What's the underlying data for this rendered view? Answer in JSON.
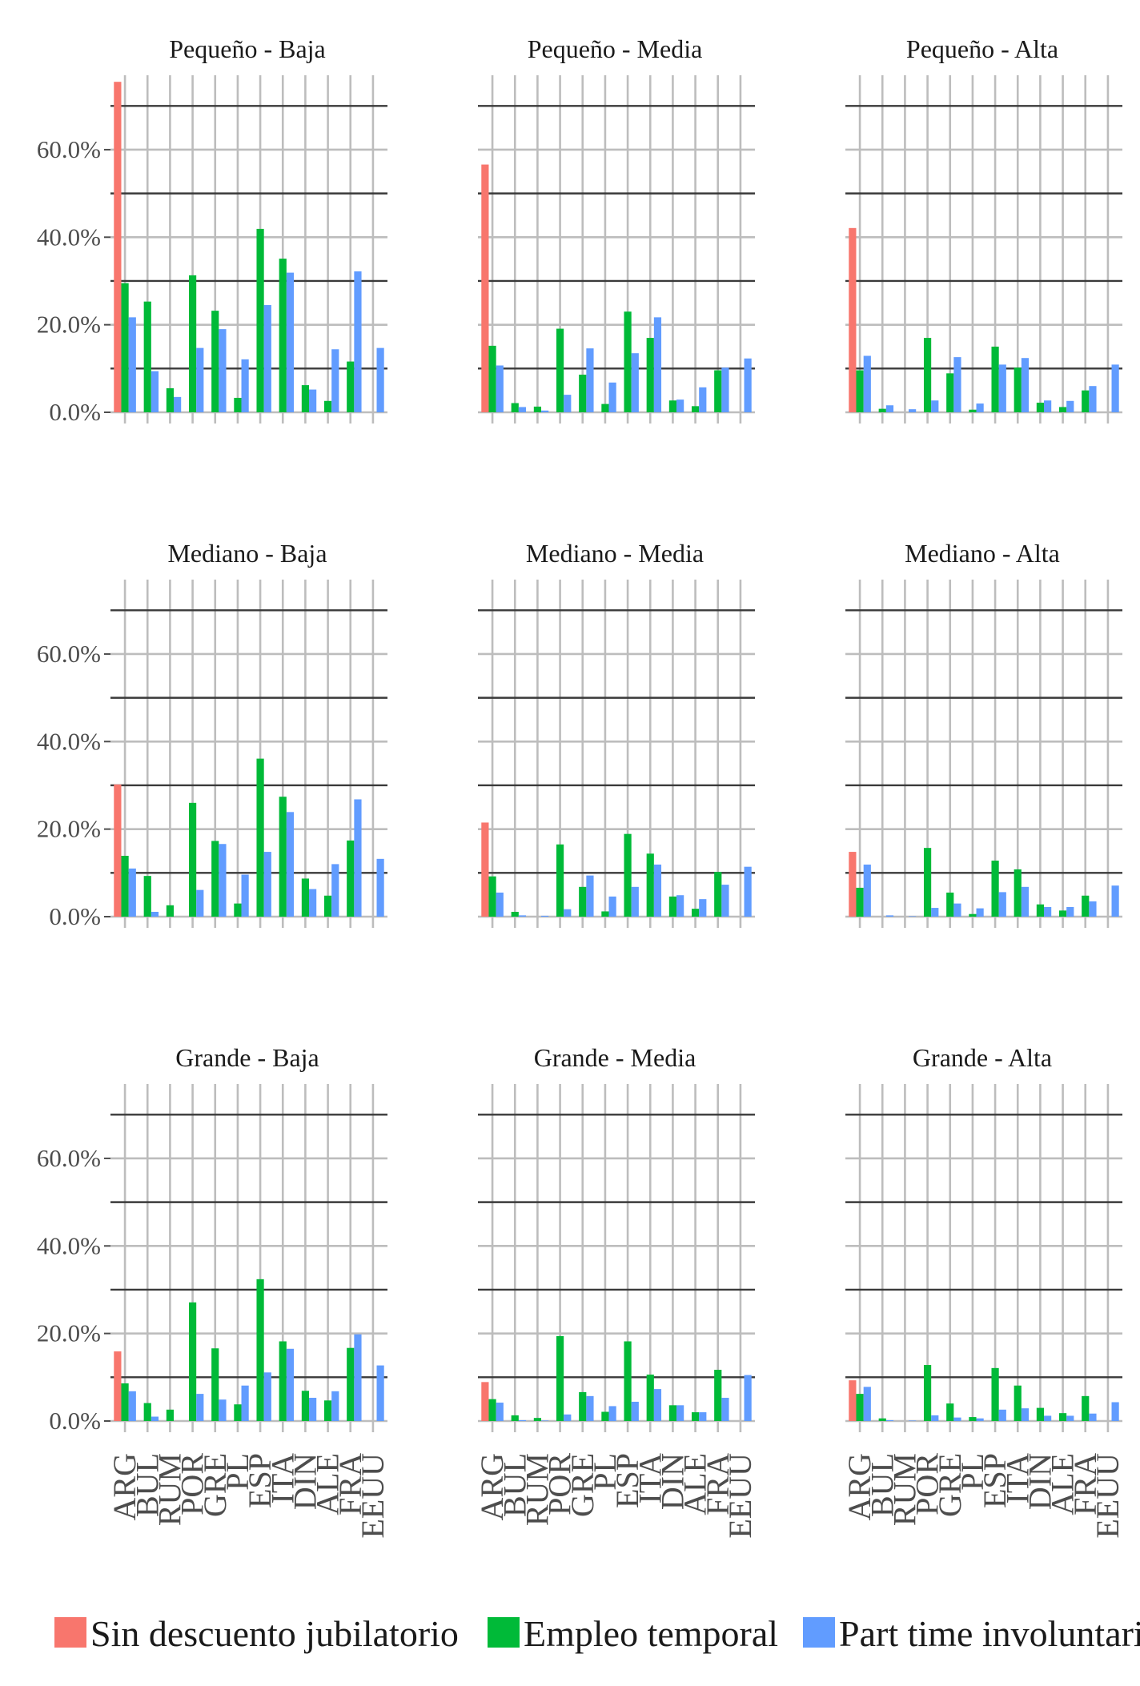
{
  "chart_data": {
    "type": "bar",
    "layout": "facet-grid",
    "y_tick_labels": [
      "0.0%",
      "20.0%",
      "40.0%",
      "60.0%"
    ],
    "y_ticks": [
      0,
      20,
      40,
      60
    ],
    "ylim": [
      0,
      77
    ],
    "y_unit": "%",
    "grid": true,
    "legend_position": "bottom",
    "categories": [
      "ARG",
      "BUL",
      "RUM",
      "POR",
      "GRE",
      "PL",
      "ESP",
      "ITA",
      "DIN",
      "ALE",
      "FRA",
      "EEUU"
    ],
    "series_names": [
      "Sin descuento jubilatorio",
      "Empleo temporal",
      "Part time involuntario"
    ],
    "series_colors": [
      "#F8766D",
      "#00BA38",
      "#619CFF"
    ],
    "panels": [
      {
        "title": "Pequeño - Baja",
        "series": [
          {
            "name": "Sin descuento jubilatorio",
            "values": [
              75.5,
              null,
              null,
              null,
              null,
              null,
              null,
              null,
              null,
              null,
              null,
              null
            ]
          },
          {
            "name": "Empleo temporal",
            "values": [
              29.5,
              25.3,
              5.5,
              31.3,
              23.2,
              3.3,
              41.9,
              35.1,
              6.2,
              2.6,
              11.6,
              null
            ]
          },
          {
            "name": "Part time involuntario",
            "values": [
              21.7,
              9.4,
              3.5,
              14.7,
              19.0,
              12.1,
              24.5,
              31.9,
              5.2,
              14.4,
              32.2,
              14.7
            ]
          }
        ]
      },
      {
        "title": "Pequeño - Media",
        "series": [
          {
            "name": "Sin descuento jubilatorio",
            "values": [
              56.6,
              null,
              null,
              null,
              null,
              null,
              null,
              null,
              null,
              null,
              null,
              null
            ]
          },
          {
            "name": "Empleo temporal",
            "values": [
              15.2,
              2.1,
              1.3,
              19.1,
              8.6,
              1.9,
              23.0,
              17.0,
              2.7,
              1.4,
              9.6,
              null
            ]
          },
          {
            "name": "Part time involuntario",
            "values": [
              10.7,
              1.2,
              0.4,
              4.0,
              14.6,
              6.8,
              13.5,
              21.7,
              2.9,
              5.7,
              10.2,
              12.3
            ]
          }
        ]
      },
      {
        "title": "Pequeño - Alta",
        "series": [
          {
            "name": "Sin descuento jubilatorio",
            "values": [
              42.1,
              null,
              null,
              null,
              null,
              null,
              null,
              null,
              null,
              null,
              null,
              null
            ]
          },
          {
            "name": "Empleo temporal",
            "values": [
              9.6,
              0.8,
              null,
              17.0,
              8.9,
              0.6,
              15.0,
              10.2,
              2.2,
              1.2,
              5.0,
              null
            ]
          },
          {
            "name": "Part time involuntario",
            "values": [
              12.9,
              1.6,
              0.7,
              2.7,
              12.6,
              2.0,
              10.9,
              12.4,
              2.7,
              2.6,
              6.0,
              10.9
            ]
          }
        ]
      },
      {
        "title": "Mediano - Baja",
        "series": [
          {
            "name": "Sin descuento jubilatorio",
            "values": [
              30.2,
              null,
              null,
              null,
              null,
              null,
              null,
              null,
              null,
              null,
              null,
              null
            ]
          },
          {
            "name": "Empleo temporal",
            "values": [
              13.9,
              9.3,
              2.6,
              26.0,
              17.3,
              3.0,
              36.1,
              27.4,
              8.7,
              4.8,
              17.4,
              null
            ]
          },
          {
            "name": "Part time involuntario",
            "values": [
              11.0,
              1.1,
              null,
              6.1,
              16.6,
              9.6,
              14.8,
              23.9,
              6.3,
              12.0,
              26.8,
              13.2
            ]
          }
        ]
      },
      {
        "title": "Mediano - Media",
        "series": [
          {
            "name": "Sin descuento jubilatorio",
            "values": [
              21.5,
              null,
              null,
              null,
              null,
              null,
              null,
              null,
              null,
              null,
              null,
              null
            ]
          },
          {
            "name": "Empleo temporal",
            "values": [
              9.2,
              1.1,
              null,
              16.5,
              6.8,
              1.2,
              18.9,
              14.4,
              4.6,
              1.8,
              10.2,
              null
            ]
          },
          {
            "name": "Part time involuntario",
            "values": [
              5.5,
              0.3,
              0.2,
              1.7,
              9.4,
              4.6,
              6.8,
              11.9,
              4.9,
              4.0,
              7.3,
              11.4
            ]
          }
        ]
      },
      {
        "title": "Mediano - Alta",
        "series": [
          {
            "name": "Sin descuento jubilatorio",
            "values": [
              14.8,
              null,
              null,
              null,
              null,
              null,
              null,
              null,
              null,
              null,
              null,
              null
            ]
          },
          {
            "name": "Empleo temporal",
            "values": [
              6.6,
              null,
              null,
              15.7,
              5.5,
              0.6,
              12.8,
              10.8,
              2.8,
              1.4,
              4.8,
              null
            ]
          },
          {
            "name": "Part time involuntario",
            "values": [
              11.9,
              0.3,
              0.1,
              2.0,
              3.0,
              1.9,
              5.6,
              6.8,
              2.2,
              2.2,
              3.5,
              7.1
            ]
          }
        ]
      },
      {
        "title": "Grande - Baja",
        "series": [
          {
            "name": "Sin descuento jubilatorio",
            "values": [
              15.9,
              null,
              null,
              null,
              null,
              null,
              null,
              null,
              null,
              null,
              null,
              null
            ]
          },
          {
            "name": "Empleo temporal",
            "values": [
              8.6,
              4.1,
              2.6,
              27.1,
              16.6,
              3.8,
              32.4,
              18.2,
              6.9,
              4.7,
              16.7,
              null
            ]
          },
          {
            "name": "Part time involuntario",
            "values": [
              6.8,
              1.0,
              null,
              6.2,
              4.9,
              8.1,
              11.1,
              16.5,
              5.3,
              6.8,
              19.8,
              12.7
            ]
          }
        ]
      },
      {
        "title": "Grande - Media",
        "series": [
          {
            "name": "Sin descuento jubilatorio",
            "values": [
              8.9,
              null,
              null,
              null,
              null,
              null,
              null,
              null,
              null,
              null,
              null,
              null
            ]
          },
          {
            "name": "Empleo temporal",
            "values": [
              5.0,
              1.3,
              0.7,
              19.4,
              6.6,
              2.1,
              18.2,
              10.6,
              3.6,
              2.0,
              11.7,
              null
            ]
          },
          {
            "name": "Part time involuntario",
            "values": [
              4.2,
              0.2,
              0.1,
              1.5,
              5.7,
              3.4,
              4.4,
              7.3,
              3.6,
              2.0,
              5.3,
              10.5
            ]
          }
        ]
      },
      {
        "title": "Grande - Alta",
        "series": [
          {
            "name": "Sin descuento jubilatorio",
            "values": [
              9.3,
              null,
              null,
              null,
              null,
              null,
              null,
              null,
              null,
              null,
              null,
              null
            ]
          },
          {
            "name": "Empleo temporal",
            "values": [
              6.2,
              0.6,
              null,
              12.8,
              4.0,
              0.9,
              12.1,
              8.1,
              3.0,
              1.8,
              5.7,
              null
            ]
          },
          {
            "name": "Part time involuntario",
            "values": [
              7.8,
              0.2,
              0.1,
              1.3,
              0.8,
              0.6,
              2.6,
              2.9,
              1.2,
              1.2,
              1.7,
              4.3
            ]
          }
        ]
      }
    ]
  }
}
